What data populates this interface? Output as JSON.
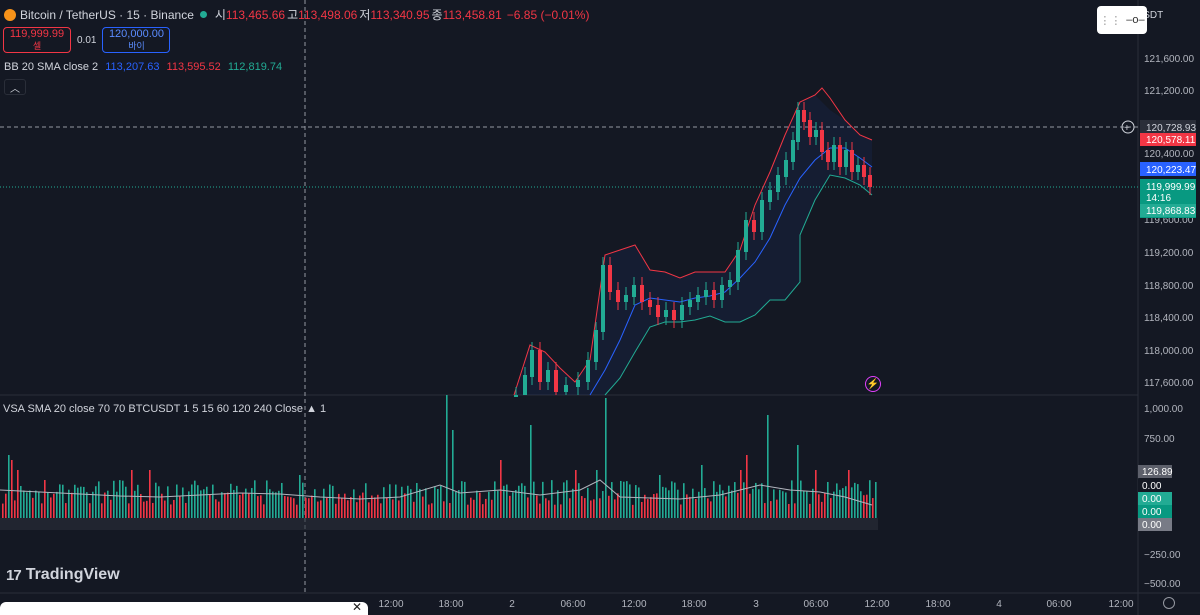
{
  "header": {
    "symbol": "Bitcoin / TetherUS · 15 · Binance",
    "open_label": "시",
    "open": "113,465.66",
    "high_label": "고",
    "high": "113,498.06",
    "low_label": "저",
    "low": "113,340.95",
    "close_label": "종",
    "close": "113,458.81",
    "change": "−6.85 (−0.01%)"
  },
  "trade": {
    "sell_price": "119,999.99",
    "sell_label": "셀",
    "spread": "0.01",
    "buy_price": "120,000.00",
    "buy_label": "바이"
  },
  "bb_legend": {
    "name": "BB 20 SMA close 2",
    "basis": "113,207.63",
    "upper": "113,595.52",
    "lower": "112,819.74"
  },
  "vsa_legend": "VSA SMA 20 close 70 70 BTCUSDT 1 5 15 60 120 240 Close ▲ 1",
  "symbol_chip": "USDT",
  "price_axis": [
    "121,600.00",
    "121,200.00",
    "120,400.00",
    "119,600.00",
    "119,200.00",
    "118,800.00",
    "118,400.00",
    "118,000.00",
    "117,600.00"
  ],
  "price_tags": {
    "crosshair": "120,728.93",
    "upper_band": "120,578.11",
    "basis": "120,223.47",
    "last": "119,999.99",
    "countdown": "14:16",
    "lower_band": "119,868.83"
  },
  "volume_axis": [
    "1,000.00",
    "750.00",
    "−250.00",
    "−500.00"
  ],
  "volume_tags": [
    "126.89",
    "0.00",
    "0.00",
    "0.00",
    "0.00"
  ],
  "time_axis": [
    "12:00",
    "18:00",
    "2",
    "06:00",
    "12:00",
    "18:00",
    "3",
    "06:00",
    "12:00",
    "18:00",
    "4",
    "06:00",
    "12:00"
  ],
  "brand": "TradingView",
  "colors": {
    "up": "#22ab94",
    "down": "#f23645",
    "basis": "#2962ff",
    "background": "#141823"
  }
}
